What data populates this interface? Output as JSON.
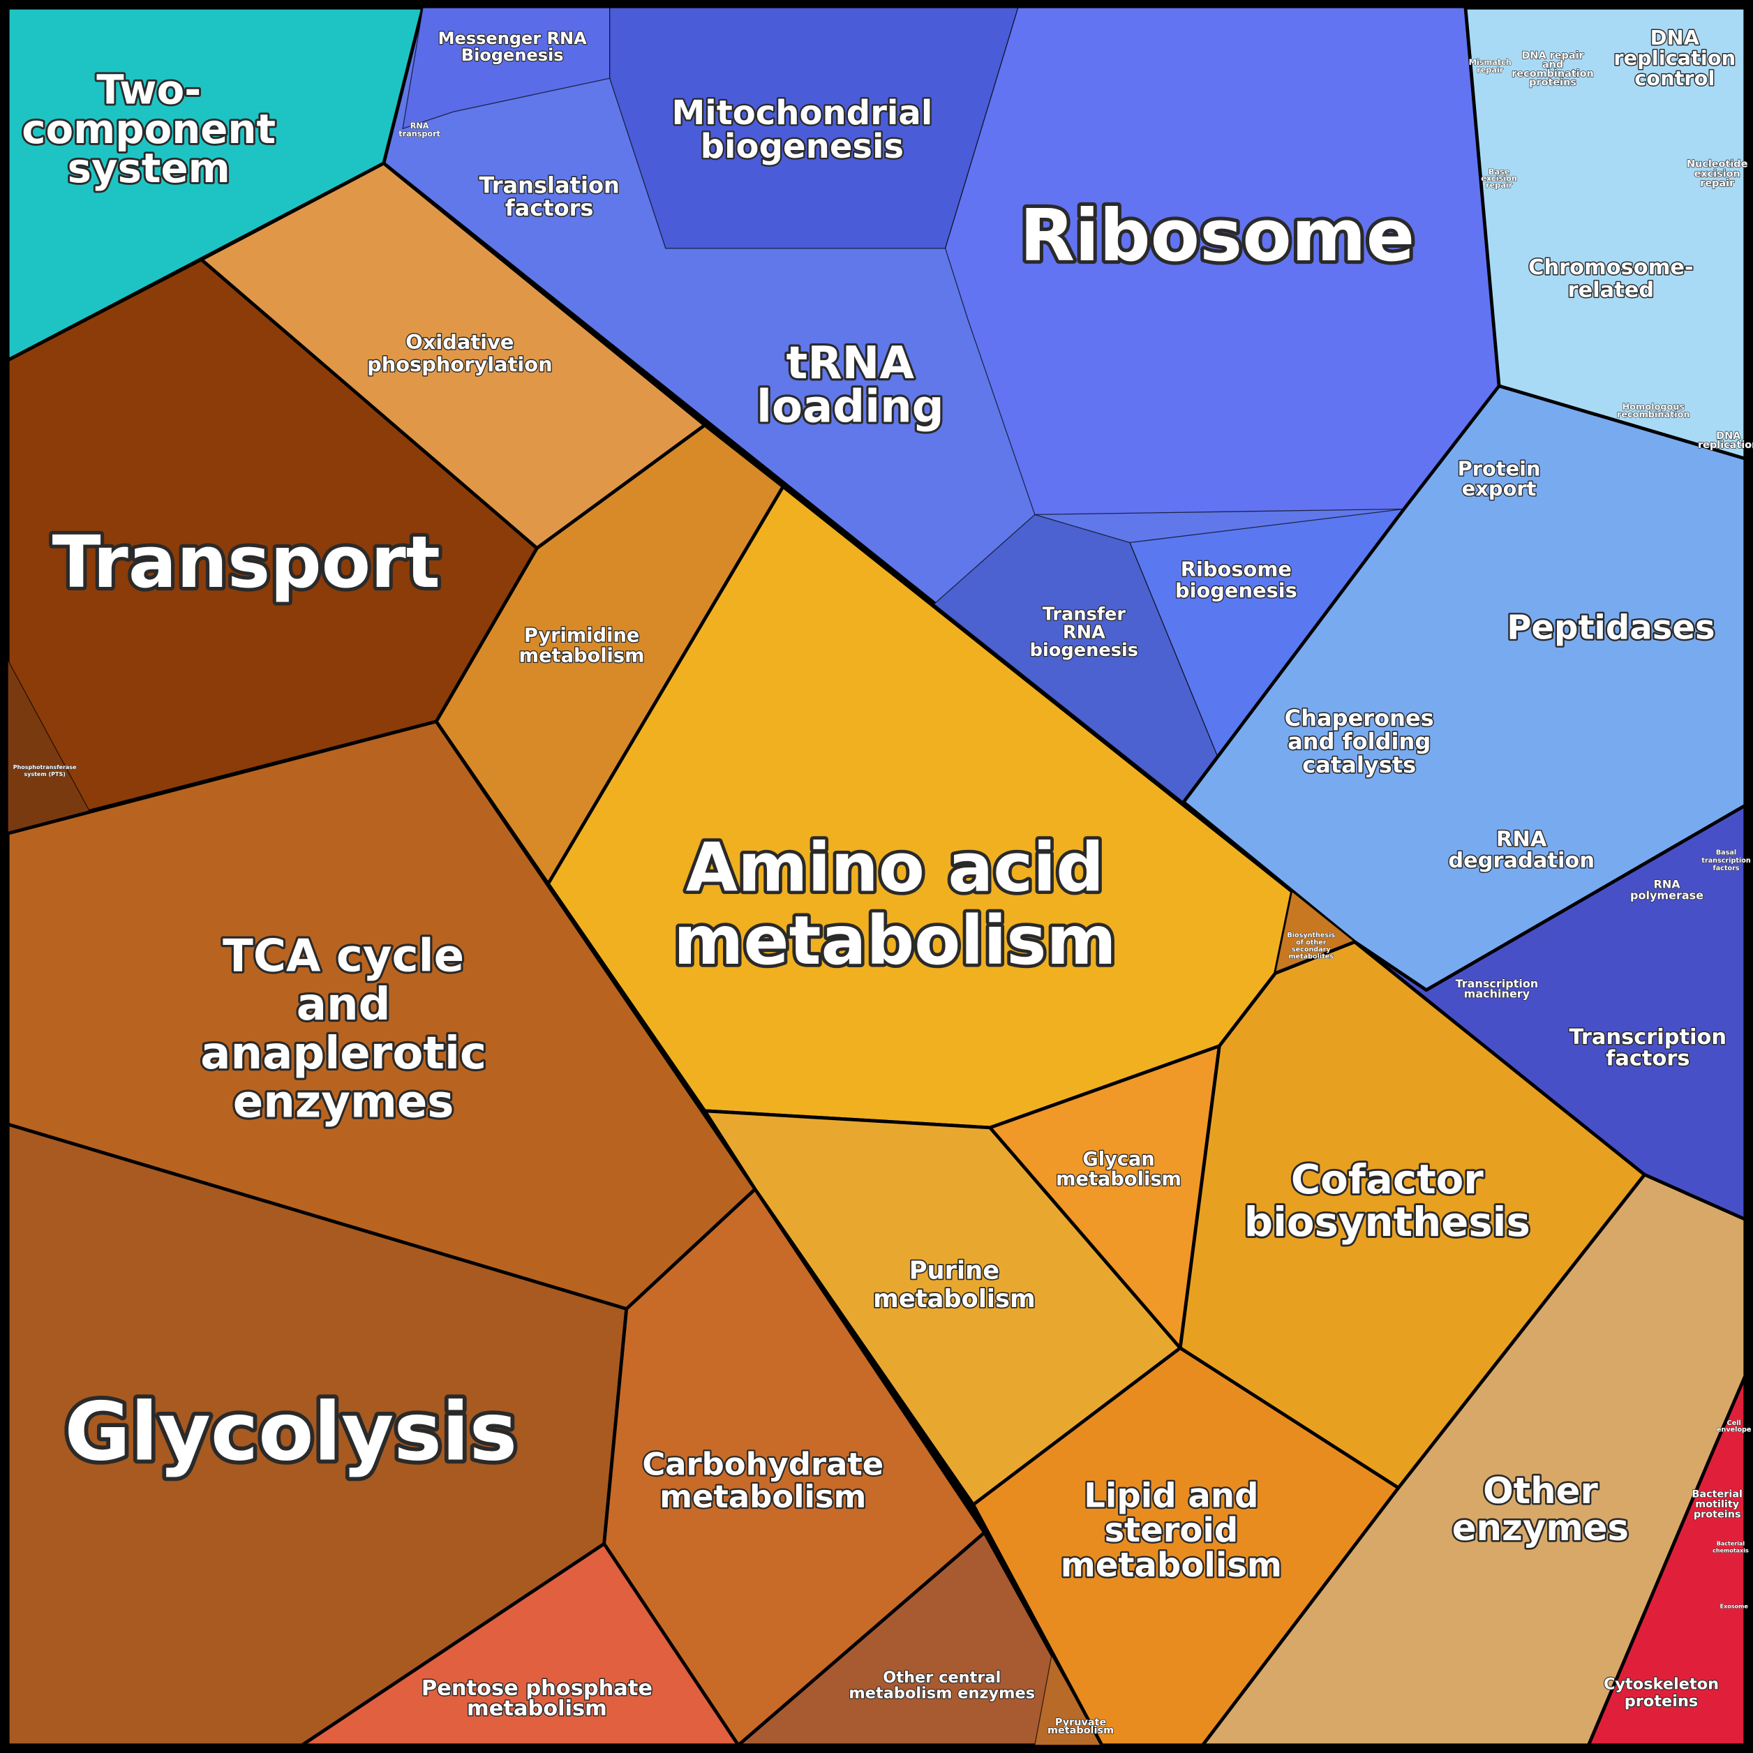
{
  "regions": [
    {
      "label": [
        "Two-",
        "component",
        "system"
      ]
    },
    {
      "label": [
        "Messenger RNA",
        "Biogenesis"
      ]
    },
    {
      "label": [
        "RNA",
        "transport"
      ]
    },
    {
      "label": [
        "Translation",
        "factors"
      ]
    },
    {
      "label": [
        "Mitochondrial",
        "biogenesis"
      ]
    },
    {
      "label": [
        "Ribosome"
      ]
    },
    {
      "label": [
        "tRNA",
        "loading"
      ]
    },
    {
      "label": [
        "Transfer",
        "RNA",
        "biogenesis"
      ]
    },
    {
      "label": [
        "Ribosome",
        "biogenesis"
      ]
    },
    {
      "label": [
        "Mismatch",
        "repair"
      ]
    },
    {
      "label": [
        "DNA repair",
        "and",
        "recombination",
        "proteins"
      ]
    },
    {
      "label": [
        "DNA",
        "replication",
        "control"
      ]
    },
    {
      "label": [
        "Base",
        "excision",
        "repair"
      ]
    },
    {
      "label": [
        "Nucleotide",
        "excision",
        "repair"
      ]
    },
    {
      "label": [
        "Chromosome-",
        "related"
      ]
    },
    {
      "label": [
        "Homologous",
        "recombination"
      ]
    },
    {
      "label": [
        "DNA",
        "replication"
      ]
    },
    {
      "label": [
        "Protein",
        "export"
      ]
    },
    {
      "label": [
        "Peptidases"
      ]
    },
    {
      "label": [
        "Chaperones",
        "and folding",
        "catalysts"
      ]
    },
    {
      "label": [
        "RNA",
        "degradation"
      ]
    },
    {
      "label": [
        "Basal",
        "transcription",
        "factors"
      ]
    },
    {
      "label": [
        "RNA",
        "polymerase"
      ]
    },
    {
      "label": [
        "Transcription",
        "machinery"
      ]
    },
    {
      "label": [
        "Transcription",
        "factors"
      ]
    },
    {
      "label": [
        "Transport"
      ]
    },
    {
      "label": [
        "Phosphotransferase",
        "system (PTS)"
      ]
    },
    {
      "label": [
        "Oxidative",
        "phosphorylation"
      ]
    },
    {
      "label": [
        "Pyrimidine",
        "metabolism"
      ]
    },
    {
      "label": [
        "Amino acid",
        "metabolism"
      ]
    },
    {
      "label": [
        "Biosynthesis",
        "of other",
        "secondary",
        "metabolites"
      ]
    },
    {
      "label": [
        "TCA cycle",
        "and",
        "anaplerotic",
        "enzymes"
      ]
    },
    {
      "label": [
        "Glycolysis"
      ]
    },
    {
      "label": [
        "Carbohydrate",
        "metabolism"
      ]
    },
    {
      "label": [
        "Pentose phosphate",
        "metabolism"
      ]
    },
    {
      "label": [
        "Other central",
        "metabolism enzymes"
      ]
    },
    {
      "label": [
        "Pyruvate",
        "metabolism"
      ]
    },
    {
      "label": [
        "Purine",
        "metabolism"
      ]
    },
    {
      "label": [
        "Glycan",
        "metabolism"
      ]
    },
    {
      "label": [
        "Cofactor",
        "biosynthesis"
      ]
    },
    {
      "label": [
        "Lipid and",
        "steroid",
        "metabolism"
      ]
    },
    {
      "label": [
        "Other",
        "enzymes"
      ]
    },
    {
      "label": [
        "Cell",
        "envelope"
      ]
    },
    {
      "label": [
        "Bacterial",
        "motility",
        "proteins"
      ]
    },
    {
      "label": [
        "Bacterial",
        "chemotaxis"
      ]
    },
    {
      "label": [
        "Exosome"
      ]
    },
    {
      "label": [
        "Cytoskeleton",
        "proteins"
      ]
    }
  ]
}
